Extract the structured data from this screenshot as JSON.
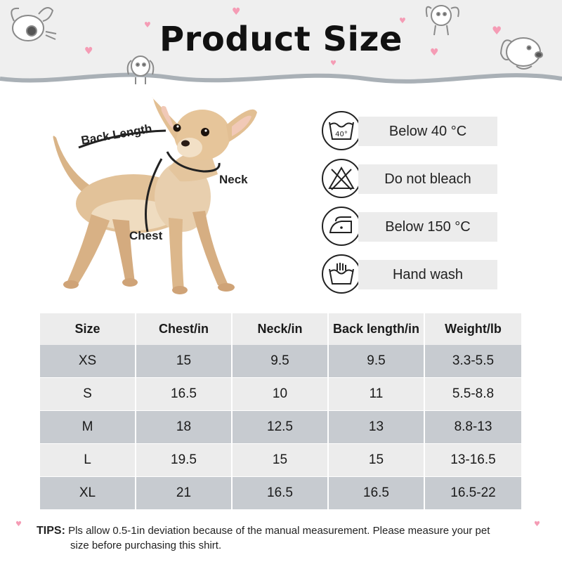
{
  "header": {
    "title": "Product Size"
  },
  "dog": {
    "labels": {
      "back_length": "Back Length",
      "neck": "Neck",
      "chest": "Chest"
    }
  },
  "care": [
    {
      "icon": "wash-40-icon",
      "label": "Below 40 °C",
      "icon_text": "40°"
    },
    {
      "icon": "no-bleach-icon",
      "label": "Do not bleach"
    },
    {
      "icon": "iron-icon",
      "label": "Below 150 °C"
    },
    {
      "icon": "hand-wash-icon",
      "label": "Hand wash"
    }
  ],
  "table": {
    "headers": [
      "Size",
      "Chest/in",
      "Neck/in",
      "Back length/in",
      "Weight/lb"
    ],
    "rows": [
      [
        "XS",
        "15",
        "9.5",
        "9.5",
        "3.3-5.5"
      ],
      [
        "S",
        "16.5",
        "10",
        "11",
        "5.5-8.8"
      ],
      [
        "M",
        "18",
        "12.5",
        "13",
        "8.8-13"
      ],
      [
        "L",
        "19.5",
        "15",
        "15",
        "13-16.5"
      ],
      [
        "XL",
        "21",
        "16.5",
        "16.5",
        "16.5-22"
      ]
    ]
  },
  "tips": {
    "label": "TIPS:",
    "text_line1": "Pls allow 0.5-1in deviation because of the manual measurement. Please measure your pet",
    "text_line2": "size before purchasing this shirt."
  },
  "colors": {
    "header_bg": "#efefef",
    "wave": "#a9b0b6",
    "heart": "#f59cb5",
    "row_dark": "#c7cbd0",
    "row_light": "#ececec"
  }
}
